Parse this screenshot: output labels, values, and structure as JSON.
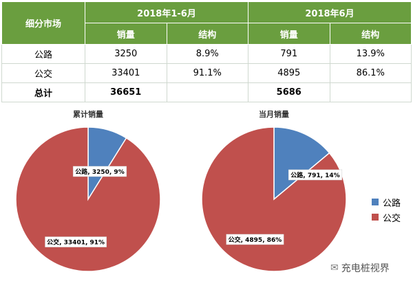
{
  "table": {
    "market_header": "细分市场",
    "period1": "2018年1-6月",
    "period2": "2018年6月",
    "sales_label": "销量",
    "share_label": "结构",
    "rows": [
      {
        "name": "公路",
        "p1_sales": "3250",
        "p1_share": "8.9%",
        "p2_sales": "791",
        "p2_share": "13.9%"
      },
      {
        "name": "公交",
        "p1_sales": "33401",
        "p1_share": "91.1%",
        "p2_sales": "4895",
        "p2_share": "86.1%"
      }
    ],
    "total": {
      "name": "总计",
      "p1_sales": "36651",
      "p2_sales": "5686"
    }
  },
  "colors": {
    "header_green": "#6a9e3f",
    "highway_blue": "#4f81bd",
    "bus_red": "#c0504d"
  },
  "legend": [
    {
      "label": "公路",
      "color": "#4f81bd"
    },
    {
      "label": "公交",
      "color": "#c0504d"
    }
  ],
  "watermark": {
    "text": "充电桩视界",
    "icon": "wechat-icon"
  },
  "chart_data": [
    {
      "type": "pie",
      "title": "累计销量",
      "categories": [
        "公路",
        "公交"
      ],
      "values": [
        3250,
        33401
      ],
      "labels": [
        "公路, 3250, 9%",
        "公交, 33401, 91%"
      ]
    },
    {
      "type": "pie",
      "title": "当月销量",
      "categories": [
        "公路",
        "公交"
      ],
      "values": [
        791,
        4895
      ],
      "labels": [
        "公路, 791, 14%",
        "公交, 4895, 86%"
      ]
    }
  ]
}
